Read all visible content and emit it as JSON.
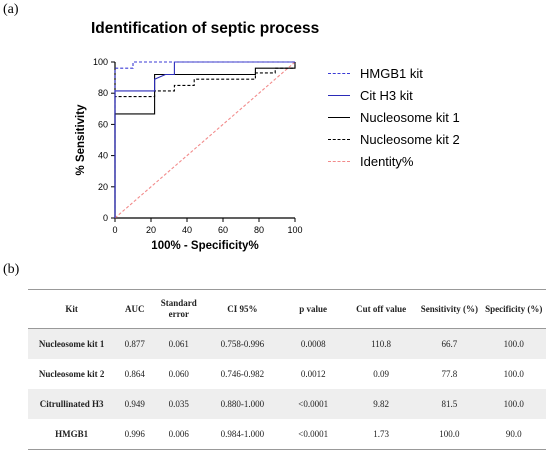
{
  "panel_a_label": "(a)",
  "panel_b_label": "(b)",
  "chart_data": {
    "type": "line",
    "title": "Identification of septic process",
    "xlabel": "100% - Specificity%",
    "ylabel": "% Sensitivity",
    "xlim": [
      0,
      100
    ],
    "ylim": [
      0,
      100
    ],
    "xticks": [
      0,
      20,
      40,
      60,
      80,
      100
    ],
    "yticks": [
      0,
      20,
      40,
      60,
      80,
      100
    ],
    "legend_position": "right",
    "series": [
      {
        "name": "HMGB1 kit",
        "color": "#3b3bd6",
        "dash": "3,2",
        "points": [
          [
            0,
            0
          ],
          [
            0,
            96
          ],
          [
            10,
            96
          ],
          [
            10,
            100
          ],
          [
            100,
            100
          ]
        ]
      },
      {
        "name": "Cit H3 kit",
        "color": "#2b2bb8",
        "dash": "",
        "points": [
          [
            0,
            0
          ],
          [
            0,
            81.5
          ],
          [
            22,
            81.5
          ],
          [
            22,
            89
          ],
          [
            28,
            92
          ],
          [
            33,
            92
          ],
          [
            33,
            100
          ],
          [
            100,
            100
          ]
        ]
      },
      {
        "name": "Nucleosome kit 1",
        "color": "#000000",
        "dash": "",
        "points": [
          [
            0,
            0
          ],
          [
            0,
            66.7
          ],
          [
            22,
            66.7
          ],
          [
            22,
            92
          ],
          [
            78,
            92
          ],
          [
            78,
            96
          ],
          [
            100,
            96
          ],
          [
            100,
            100
          ]
        ]
      },
      {
        "name": "Nucleosome kit 2",
        "color": "#000000",
        "dash": "3,2",
        "points": [
          [
            0,
            0
          ],
          [
            0,
            77.8
          ],
          [
            22,
            77.8
          ],
          [
            22,
            81.5
          ],
          [
            33,
            81.5
          ],
          [
            33,
            85
          ],
          [
            44,
            85
          ],
          [
            44,
            89
          ],
          [
            78,
            89
          ],
          [
            78,
            93
          ],
          [
            89,
            93
          ],
          [
            89,
            96
          ],
          [
            100,
            96
          ],
          [
            100,
            100
          ]
        ]
      },
      {
        "name": "Identity%",
        "color": "#f28b8b",
        "dash": "3,2",
        "points": [
          [
            0,
            0
          ],
          [
            100,
            100
          ]
        ]
      }
    ]
  },
  "table": {
    "headers": [
      "Kit",
      "AUC",
      "Standard error",
      "CI 95%",
      "p value",
      "Cut off value",
      "Sensitivity (%)",
      "Specificity (%)"
    ],
    "rows": [
      [
        "Nucleosome kit 1",
        "0.877",
        "0.061",
        "0.758-0.996",
        "0.0008",
        "110.8",
        "66.7",
        "100.0"
      ],
      [
        "Nucleosome kit 2",
        "0.864",
        "0.060",
        "0.746-0.982",
        "0.0012",
        "0.09",
        "77.8",
        "100.0"
      ],
      [
        "Citrullinated H3",
        "0.949",
        "0.035",
        "0.880-1.000",
        "<0.0001",
        "9.82",
        "81.5",
        "100.0"
      ],
      [
        "HMGB1",
        "0.996",
        "0.006",
        "0.984-1.000",
        "<0.0001",
        "1.73",
        "100.0",
        "90.0"
      ]
    ]
  }
}
